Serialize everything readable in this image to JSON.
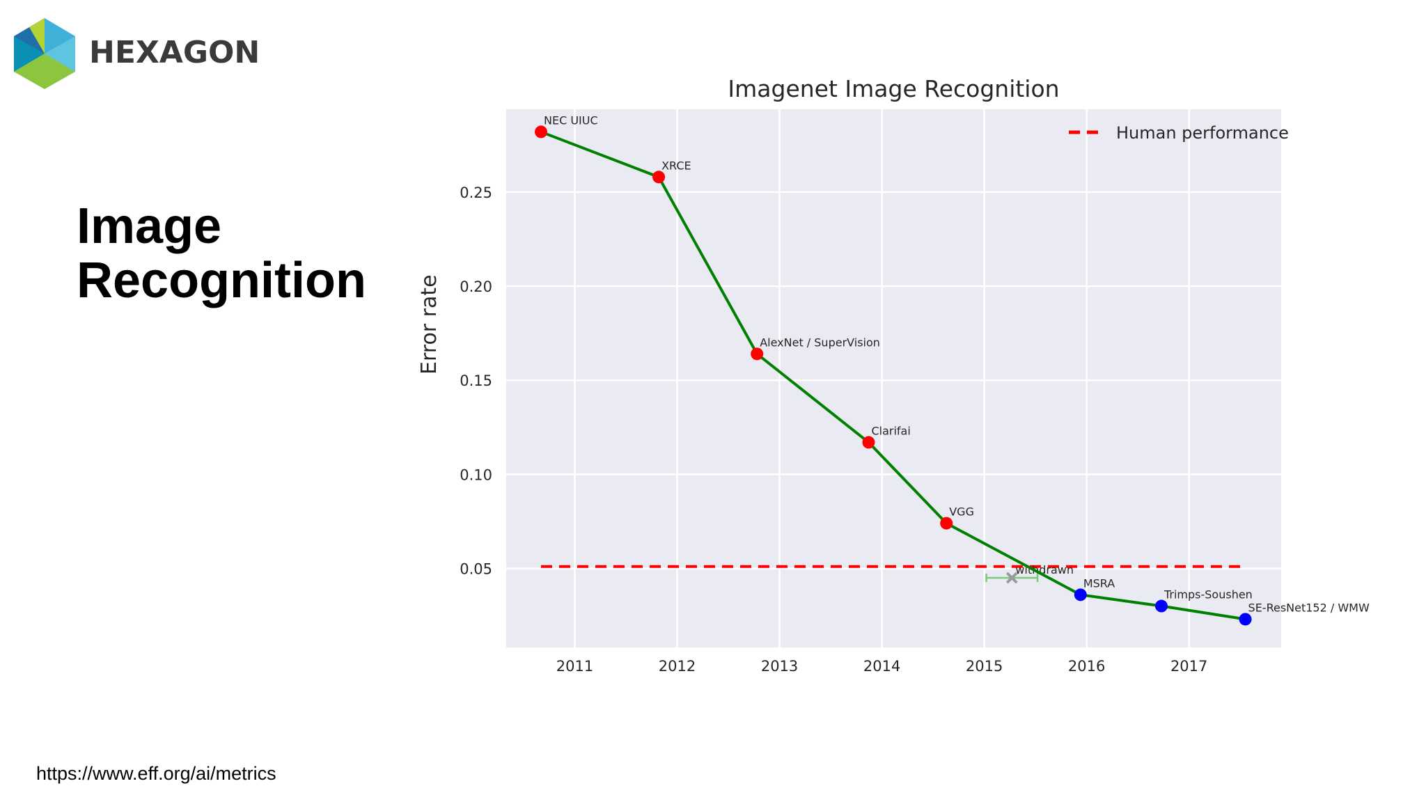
{
  "logo": {
    "name": "HEXAGON",
    "colors": [
      "#0a8fb5",
      "#3fb0d8",
      "#8cc63f",
      "#1f6fa8"
    ]
  },
  "slide": {
    "title_line1": "Image",
    "title_line2": "Recognition",
    "source": "https://www.eff.org/ai/metrics"
  },
  "chart_data": {
    "type": "line",
    "title": "Imagenet Image Recognition",
    "xlabel": "",
    "ylabel": "Error rate",
    "xlim": [
      2010.33,
      2017.9
    ],
    "ylim": [
      0.008,
      0.294
    ],
    "x_ticks": [
      2011,
      2012,
      2013,
      2014,
      2015,
      2016,
      2017
    ],
    "y_ticks": [
      0.05,
      0.1,
      0.15,
      0.2,
      0.25
    ],
    "y_tick_labels": [
      "0.05",
      "0.10",
      "0.15",
      "0.20",
      "0.25"
    ],
    "grid": true,
    "background": "#eaeaf2",
    "line_color": "#008000",
    "points": [
      {
        "label": "NEC UIUC",
        "x": 2010.67,
        "y": 0.282,
        "color": "#ff0000"
      },
      {
        "label": "XRCE",
        "x": 2011.82,
        "y": 0.258,
        "color": "#ff0000"
      },
      {
        "label": "AlexNet / SuperVision",
        "x": 2012.78,
        "y": 0.164,
        "color": "#ff0000"
      },
      {
        "label": "Clarifai",
        "x": 2013.87,
        "y": 0.117,
        "color": "#ff0000"
      },
      {
        "label": "VGG",
        "x": 2014.63,
        "y": 0.074,
        "color": "#ff0000"
      },
      {
        "label": "MSRA",
        "x": 2015.94,
        "y": 0.036,
        "color": "#0000ff"
      },
      {
        "label": "Trimps-Soushen",
        "x": 2016.73,
        "y": 0.03,
        "color": "#0000ff"
      },
      {
        "label": "SE-ResNet152 / WMW",
        "x": 2017.55,
        "y": 0.023,
        "color": "#0000ff"
      }
    ],
    "withdrawn": {
      "label": "withdrawn",
      "x": 2015.27,
      "y": 0.045,
      "x_err": 0.25,
      "color": "#7fc97f"
    },
    "human_performance": {
      "label": "Human performance",
      "y": 0.051,
      "x_range": [
        2010.67,
        2017.55
      ],
      "color": "#ff0000"
    },
    "legend_position": "top-right"
  }
}
